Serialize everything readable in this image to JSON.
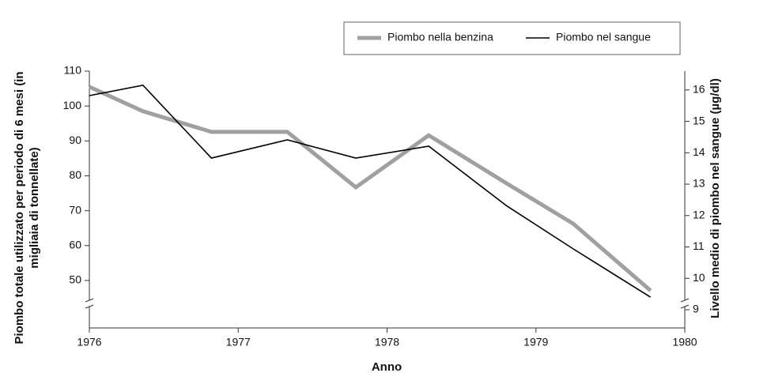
{
  "chart_data": {
    "type": "line",
    "xlabel": "Anno",
    "ylabel": "Piombo totale utilizzato per periodo di 6 mesi (in migliaia di tonnellate)",
    "y2label": "Livello medio di piombo nel sangue (µg/dl)",
    "x": [
      1976,
      1976.36,
      1976.82,
      1977.33,
      1977.79,
      1978.28,
      1978.8,
      1979.25,
      1979.77
    ],
    "xlim": [
      1976,
      1980
    ],
    "xticks": [
      1976,
      1977,
      1978,
      1979,
      1980
    ],
    "ylim": [
      36.4,
      110
    ],
    "yticks": [
      50,
      60,
      70,
      80,
      90,
      100,
      110
    ],
    "y2lim": [
      8.42,
      16.6
    ],
    "y2ticks": [
      9,
      10,
      11,
      12,
      13,
      14,
      15,
      16
    ],
    "series": [
      {
        "name": "Piombo nella benzina",
        "color": "#a0a0a0",
        "values": [
          105.5,
          98.5,
          92.6,
          92.6,
          76.7,
          91.6,
          77.9,
          66.3,
          47.1
        ]
      },
      {
        "name": "Piombo nel sangue",
        "color": "#000000",
        "axis": "y2",
        "values": [
          15.82,
          16.15,
          13.83,
          14.41,
          13.83,
          14.21,
          12.32,
          10.94,
          9.4
        ]
      }
    ]
  }
}
